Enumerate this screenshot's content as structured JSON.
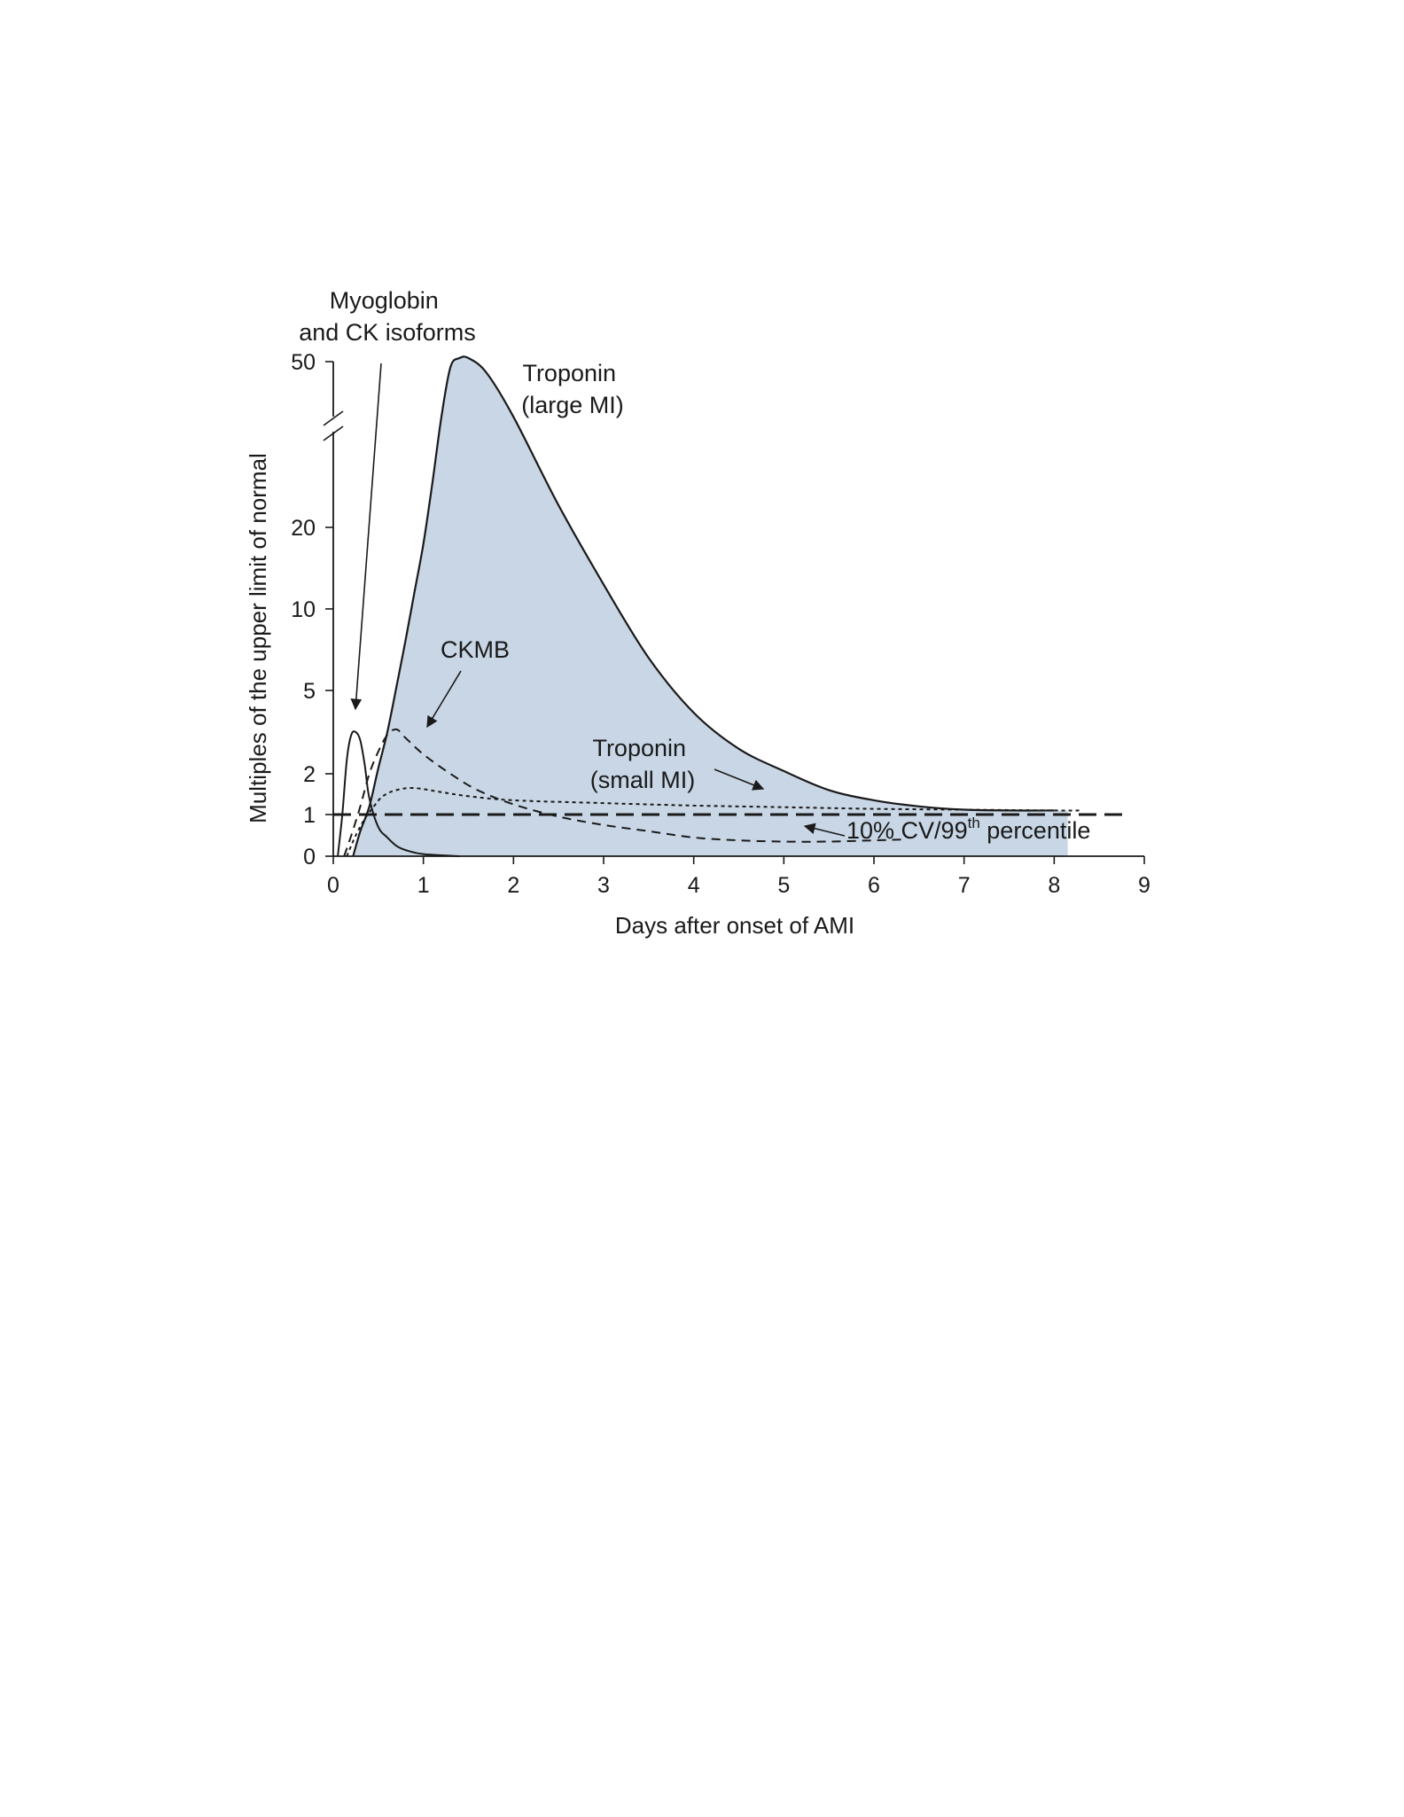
{
  "chart_data": {
    "type": "line",
    "xlabel": "Days after onset of AMI",
    "ylabel": "Multiples of the upper limit of normal",
    "xlim": [
      0,
      9
    ],
    "x_ticks": [
      "0",
      "1",
      "2",
      "3",
      "4",
      "5",
      "6",
      "7",
      "8",
      "9"
    ],
    "y_ticks": [
      {
        "value": 0,
        "label": "0"
      },
      {
        "value": 1,
        "label": "1"
      },
      {
        "value": 2,
        "label": "2"
      },
      {
        "value": 5,
        "label": "5"
      },
      {
        "value": 10,
        "label": "10"
      },
      {
        "value": 20,
        "label": "20"
      },
      {
        "value": 50,
        "label": "50"
      }
    ],
    "y_axis_break": true,
    "grid": false,
    "colors": {
      "fill": "#c8d6e5",
      "line": "#1a1a1a"
    },
    "series": [
      {
        "name": "Troponin (large MI)",
        "style": "solid-filled",
        "points": [
          [
            0.22,
            0
          ],
          [
            0.3,
            0.6
          ],
          [
            0.4,
            1.2
          ],
          [
            0.5,
            2.2
          ],
          [
            0.6,
            3.5
          ],
          [
            0.7,
            5.2
          ],
          [
            0.8,
            8
          ],
          [
            0.9,
            12
          ],
          [
            1.0,
            18
          ],
          [
            1.1,
            28
          ],
          [
            1.2,
            40
          ],
          [
            1.3,
            49
          ],
          [
            1.4,
            51
          ],
          [
            1.5,
            51
          ],
          [
            1.7,
            48
          ],
          [
            2.0,
            40
          ],
          [
            2.5,
            24
          ],
          [
            3.0,
            13
          ],
          [
            3.5,
            7
          ],
          [
            4.0,
            4.2
          ],
          [
            4.5,
            2.9
          ],
          [
            5.0,
            2.1
          ],
          [
            5.5,
            1.6
          ],
          [
            6.0,
            1.35
          ],
          [
            6.5,
            1.2
          ],
          [
            7.0,
            1.12
          ],
          [
            7.5,
            1.1
          ],
          [
            8.0,
            1.1
          ],
          [
            8.15,
            1.1
          ],
          [
            8.15,
            0
          ]
        ]
      },
      {
        "name": "Myoglobin and CK isoforms",
        "style": "solid",
        "points": [
          [
            0.05,
            0
          ],
          [
            0.1,
            1.0
          ],
          [
            0.15,
            2.5
          ],
          [
            0.2,
            3.4
          ],
          [
            0.25,
            3.5
          ],
          [
            0.3,
            3.2
          ],
          [
            0.35,
            2.3
          ],
          [
            0.4,
            1.4
          ],
          [
            0.5,
            0.7
          ],
          [
            0.6,
            0.45
          ],
          [
            0.7,
            0.25
          ],
          [
            0.8,
            0.15
          ],
          [
            1.0,
            0.05
          ],
          [
            1.4,
            0
          ]
        ]
      },
      {
        "name": "CKMB",
        "style": "dashed",
        "points": [
          [
            0.12,
            0
          ],
          [
            0.2,
            0.5
          ],
          [
            0.3,
            1.2
          ],
          [
            0.4,
            2.0
          ],
          [
            0.5,
            2.8
          ],
          [
            0.6,
            3.4
          ],
          [
            0.7,
            3.6
          ],
          [
            0.8,
            3.3
          ],
          [
            1.0,
            2.7
          ],
          [
            1.3,
            2.0
          ],
          [
            1.6,
            1.6
          ],
          [
            2.0,
            1.25
          ],
          [
            2.5,
            0.95
          ],
          [
            3.0,
            0.75
          ],
          [
            3.5,
            0.6
          ],
          [
            4.0,
            0.45
          ],
          [
            4.5,
            0.38
          ],
          [
            5.0,
            0.35
          ],
          [
            5.5,
            0.35
          ],
          [
            6.0,
            0.38
          ],
          [
            6.3,
            0.4
          ]
        ]
      },
      {
        "name": "Troponin (small MI)",
        "style": "dotted",
        "points": [
          [
            0.15,
            0
          ],
          [
            0.25,
            0.5
          ],
          [
            0.35,
            0.9
          ],
          [
            0.45,
            1.2
          ],
          [
            0.55,
            1.45
          ],
          [
            0.7,
            1.6
          ],
          [
            0.9,
            1.65
          ],
          [
            1.2,
            1.55
          ],
          [
            1.5,
            1.45
          ],
          [
            2.0,
            1.35
          ],
          [
            3.0,
            1.28
          ],
          [
            4.0,
            1.22
          ],
          [
            5.0,
            1.18
          ],
          [
            6.0,
            1.14
          ],
          [
            7.0,
            1.12
          ],
          [
            8.0,
            1.1
          ],
          [
            8.3,
            1.1
          ]
        ]
      },
      {
        "name": "10% CV/99th percentile",
        "style": "long-dash",
        "points": [
          [
            0,
            1
          ],
          [
            8.8,
            1
          ]
        ]
      }
    ],
    "annotations": [
      {
        "key": "myoglobin",
        "lines": [
          "Myoglobin",
          "and CK isoforms"
        ]
      },
      {
        "key": "trop_large",
        "lines": [
          "Troponin",
          "(large MI)"
        ]
      },
      {
        "key": "ckmb",
        "lines": [
          "CKMB"
        ]
      },
      {
        "key": "trop_small",
        "lines": [
          "Troponin",
          "(small MI)"
        ]
      },
      {
        "key": "cutoff",
        "text": "10% CV/99",
        "sup": "th",
        "tail": " percentile"
      }
    ]
  }
}
